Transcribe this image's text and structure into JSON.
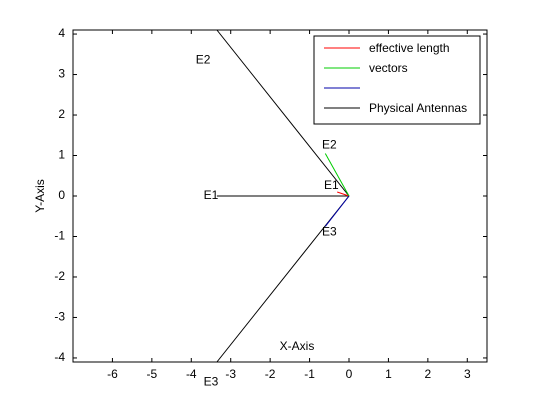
{
  "chart_data": {
    "type": "line",
    "xlabel": "X-Axis",
    "ylabel": "Y-Axis",
    "xlim": [
      -7,
      3.5
    ],
    "ylim": [
      -4.1,
      4.1
    ],
    "xticks": [
      -6,
      -5,
      -4,
      -3,
      -2,
      -1,
      0,
      1,
      2,
      3
    ],
    "yticks": [
      -4,
      -3,
      -2,
      -1,
      0,
      1,
      2,
      3,
      4
    ],
    "xtick_labels": [
      "-6",
      "-5",
      "-4",
      "-3",
      "-2",
      "-1",
      "0",
      "1",
      "2",
      "3"
    ],
    "ytick_labels": [
      "-4",
      "-3",
      "-2",
      "-1",
      "0",
      "1",
      "2",
      "3",
      "4"
    ],
    "grid": false,
    "legend_position": "top-right",
    "legend": [
      {
        "label": "effective length",
        "color": "#ff0000"
      },
      {
        "label": "vectors",
        "color": "#00cc00"
      },
      {
        "label": "",
        "color": "#0000aa"
      },
      {
        "label": "Physical Antennas",
        "color": "#000000"
      }
    ],
    "series": [
      {
        "color": "#000000",
        "x": [
          0,
          -3.35
        ],
        "y": [
          0,
          0
        ]
      },
      {
        "color": "#000000",
        "x": [
          0,
          -3.35
        ],
        "y": [
          0,
          4.1
        ]
      },
      {
        "color": "#000000",
        "x": [
          0,
          -3.35
        ],
        "y": [
          0,
          -4.1
        ]
      },
      {
        "color": "#ff0000",
        "x": [
          0,
          -0.3
        ],
        "y": [
          0,
          0.1
        ]
      },
      {
        "color": "#00cc00",
        "x": [
          0,
          -0.6
        ],
        "y": [
          0,
          1.05
        ]
      },
      {
        "color": "#0000aa",
        "x": [
          0,
          -0.6
        ],
        "y": [
          0,
          -0.75
        ]
      }
    ],
    "annotations": [
      {
        "text": "E1",
        "color": "#000000",
        "x": -3.5,
        "y": 0
      },
      {
        "text": "E2",
        "color": "#000000",
        "x": -3.7,
        "y": 3.35
      },
      {
        "text": "E3",
        "color": "#000000",
        "x": -3.5,
        "y": -4.6
      },
      {
        "text": "E1",
        "color": "#ff0000",
        "x": -0.45,
        "y": 0.25
      },
      {
        "text": "E2",
        "color": "#00cc00",
        "x": -0.5,
        "y": 1.25
      },
      {
        "text": "E3",
        "color": "#0000aa",
        "x": -0.5,
        "y": -0.9
      }
    ]
  }
}
